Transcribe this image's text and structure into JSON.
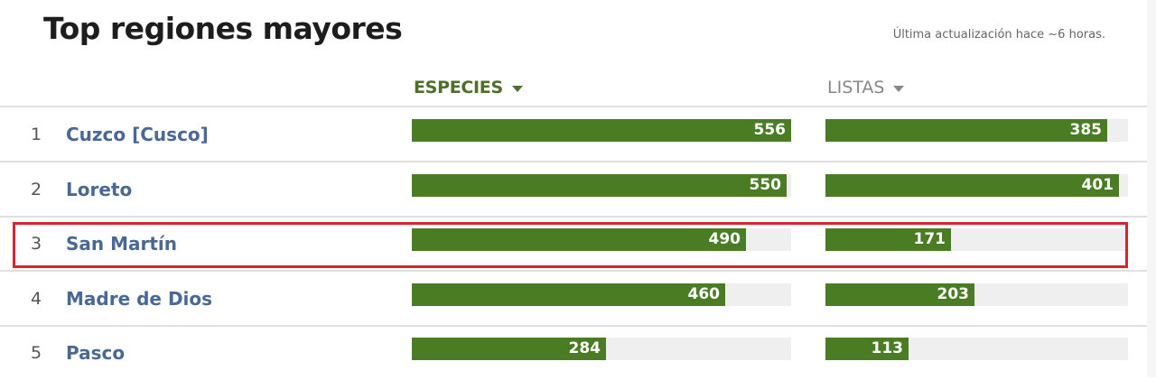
{
  "header": {
    "title": "Top regiones mayores",
    "last_updated": "Última actualización hace ~6 horas."
  },
  "columns": {
    "especies": {
      "label": "ESPECIES",
      "active": true,
      "icon": "caret-down-icon"
    },
    "listas": {
      "label": "LISTAS",
      "active": false,
      "icon": "caret-down-icon"
    }
  },
  "colors": {
    "bar": "#4a7c23",
    "track": "#efefef",
    "link": "#4a6896",
    "active_header": "#4e6e2a",
    "highlight": "#d9232e"
  },
  "scale": {
    "especies_max": 556,
    "listas_max": 413
  },
  "rows": [
    {
      "rank": "1",
      "name": "Cuzco [Cusco]",
      "especies": 556,
      "listas": 385
    },
    {
      "rank": "2",
      "name": "Loreto",
      "especies": 550,
      "listas": 401
    },
    {
      "rank": "3",
      "name": "San Martín",
      "especies": 490,
      "listas": 171,
      "highlighted": true
    },
    {
      "rank": "4",
      "name": "Madre de Dios",
      "especies": 460,
      "listas": 203
    },
    {
      "rank": "5",
      "name": "Pasco",
      "especies": 284,
      "listas": 113
    }
  ],
  "chart_data": {
    "type": "bar",
    "title": "Top regiones mayores",
    "categories": [
      "Cuzco [Cusco]",
      "Loreto",
      "San Martín",
      "Madre de Dios",
      "Pasco"
    ],
    "series": [
      {
        "name": "ESPECIES",
        "values": [
          556,
          550,
          490,
          460,
          284
        ]
      },
      {
        "name": "LISTAS",
        "values": [
          385,
          401,
          171,
          203,
          113
        ]
      }
    ],
    "orientation": "horizontal",
    "sorted_by": "ESPECIES"
  }
}
